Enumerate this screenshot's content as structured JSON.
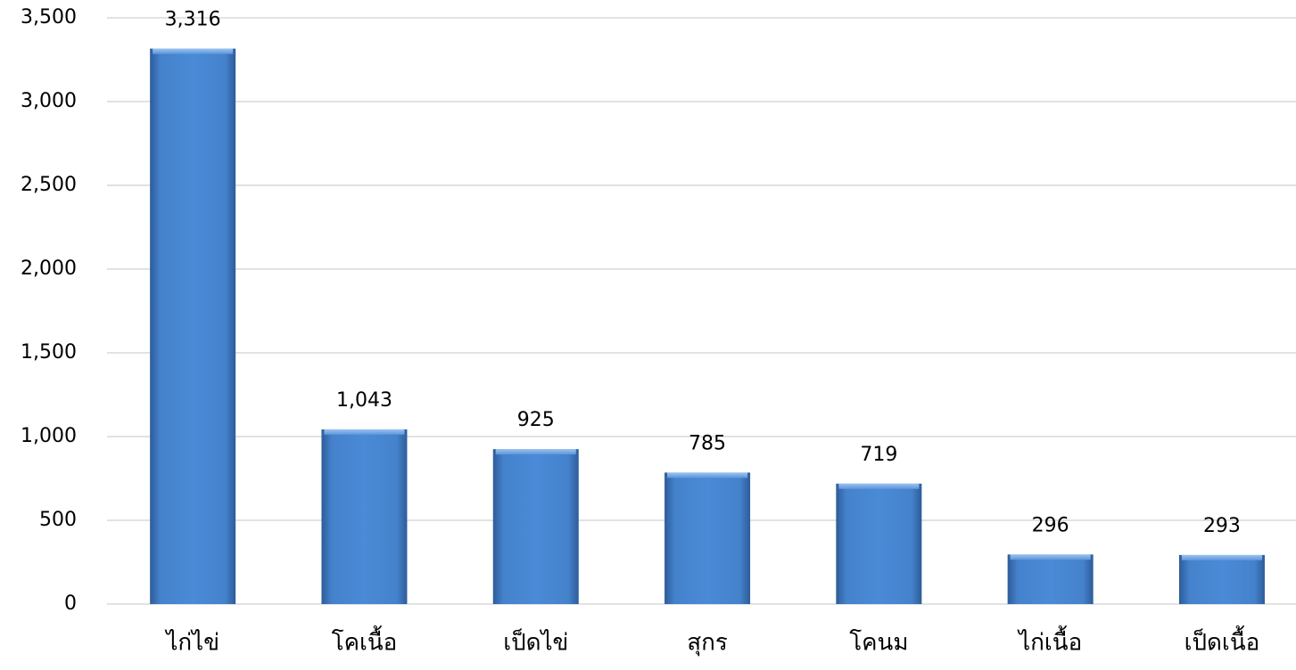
{
  "chart_data": {
    "type": "bar",
    "categories": [
      "ไก่ไข่",
      "โคเนื้อ",
      "เป็ดไข่",
      "สุกร",
      "โคนม",
      "ไก่เนื้อ",
      "เป็ดเนื้อ"
    ],
    "values": [
      3316,
      1043,
      925,
      785,
      719,
      296,
      293
    ],
    "value_labels": [
      "3,316",
      "1,043",
      "925",
      "785",
      "719",
      "296",
      "293"
    ],
    "color": "#4a86d0",
    "ylim": [
      0,
      3500
    ],
    "yticks": [
      0,
      500,
      {
        "value": 1000,
        "label": "1,000"
      },
      {
        "value": 1500,
        "label": "1,500"
      },
      {
        "value": 2000,
        "label": "2,000"
      },
      {
        "value": 2500,
        "label": "2,500"
      },
      {
        "value": 3000,
        "label": "3,000"
      },
      {
        "value": 3500,
        "label": "3,500"
      }
    ],
    "grid": true
  }
}
